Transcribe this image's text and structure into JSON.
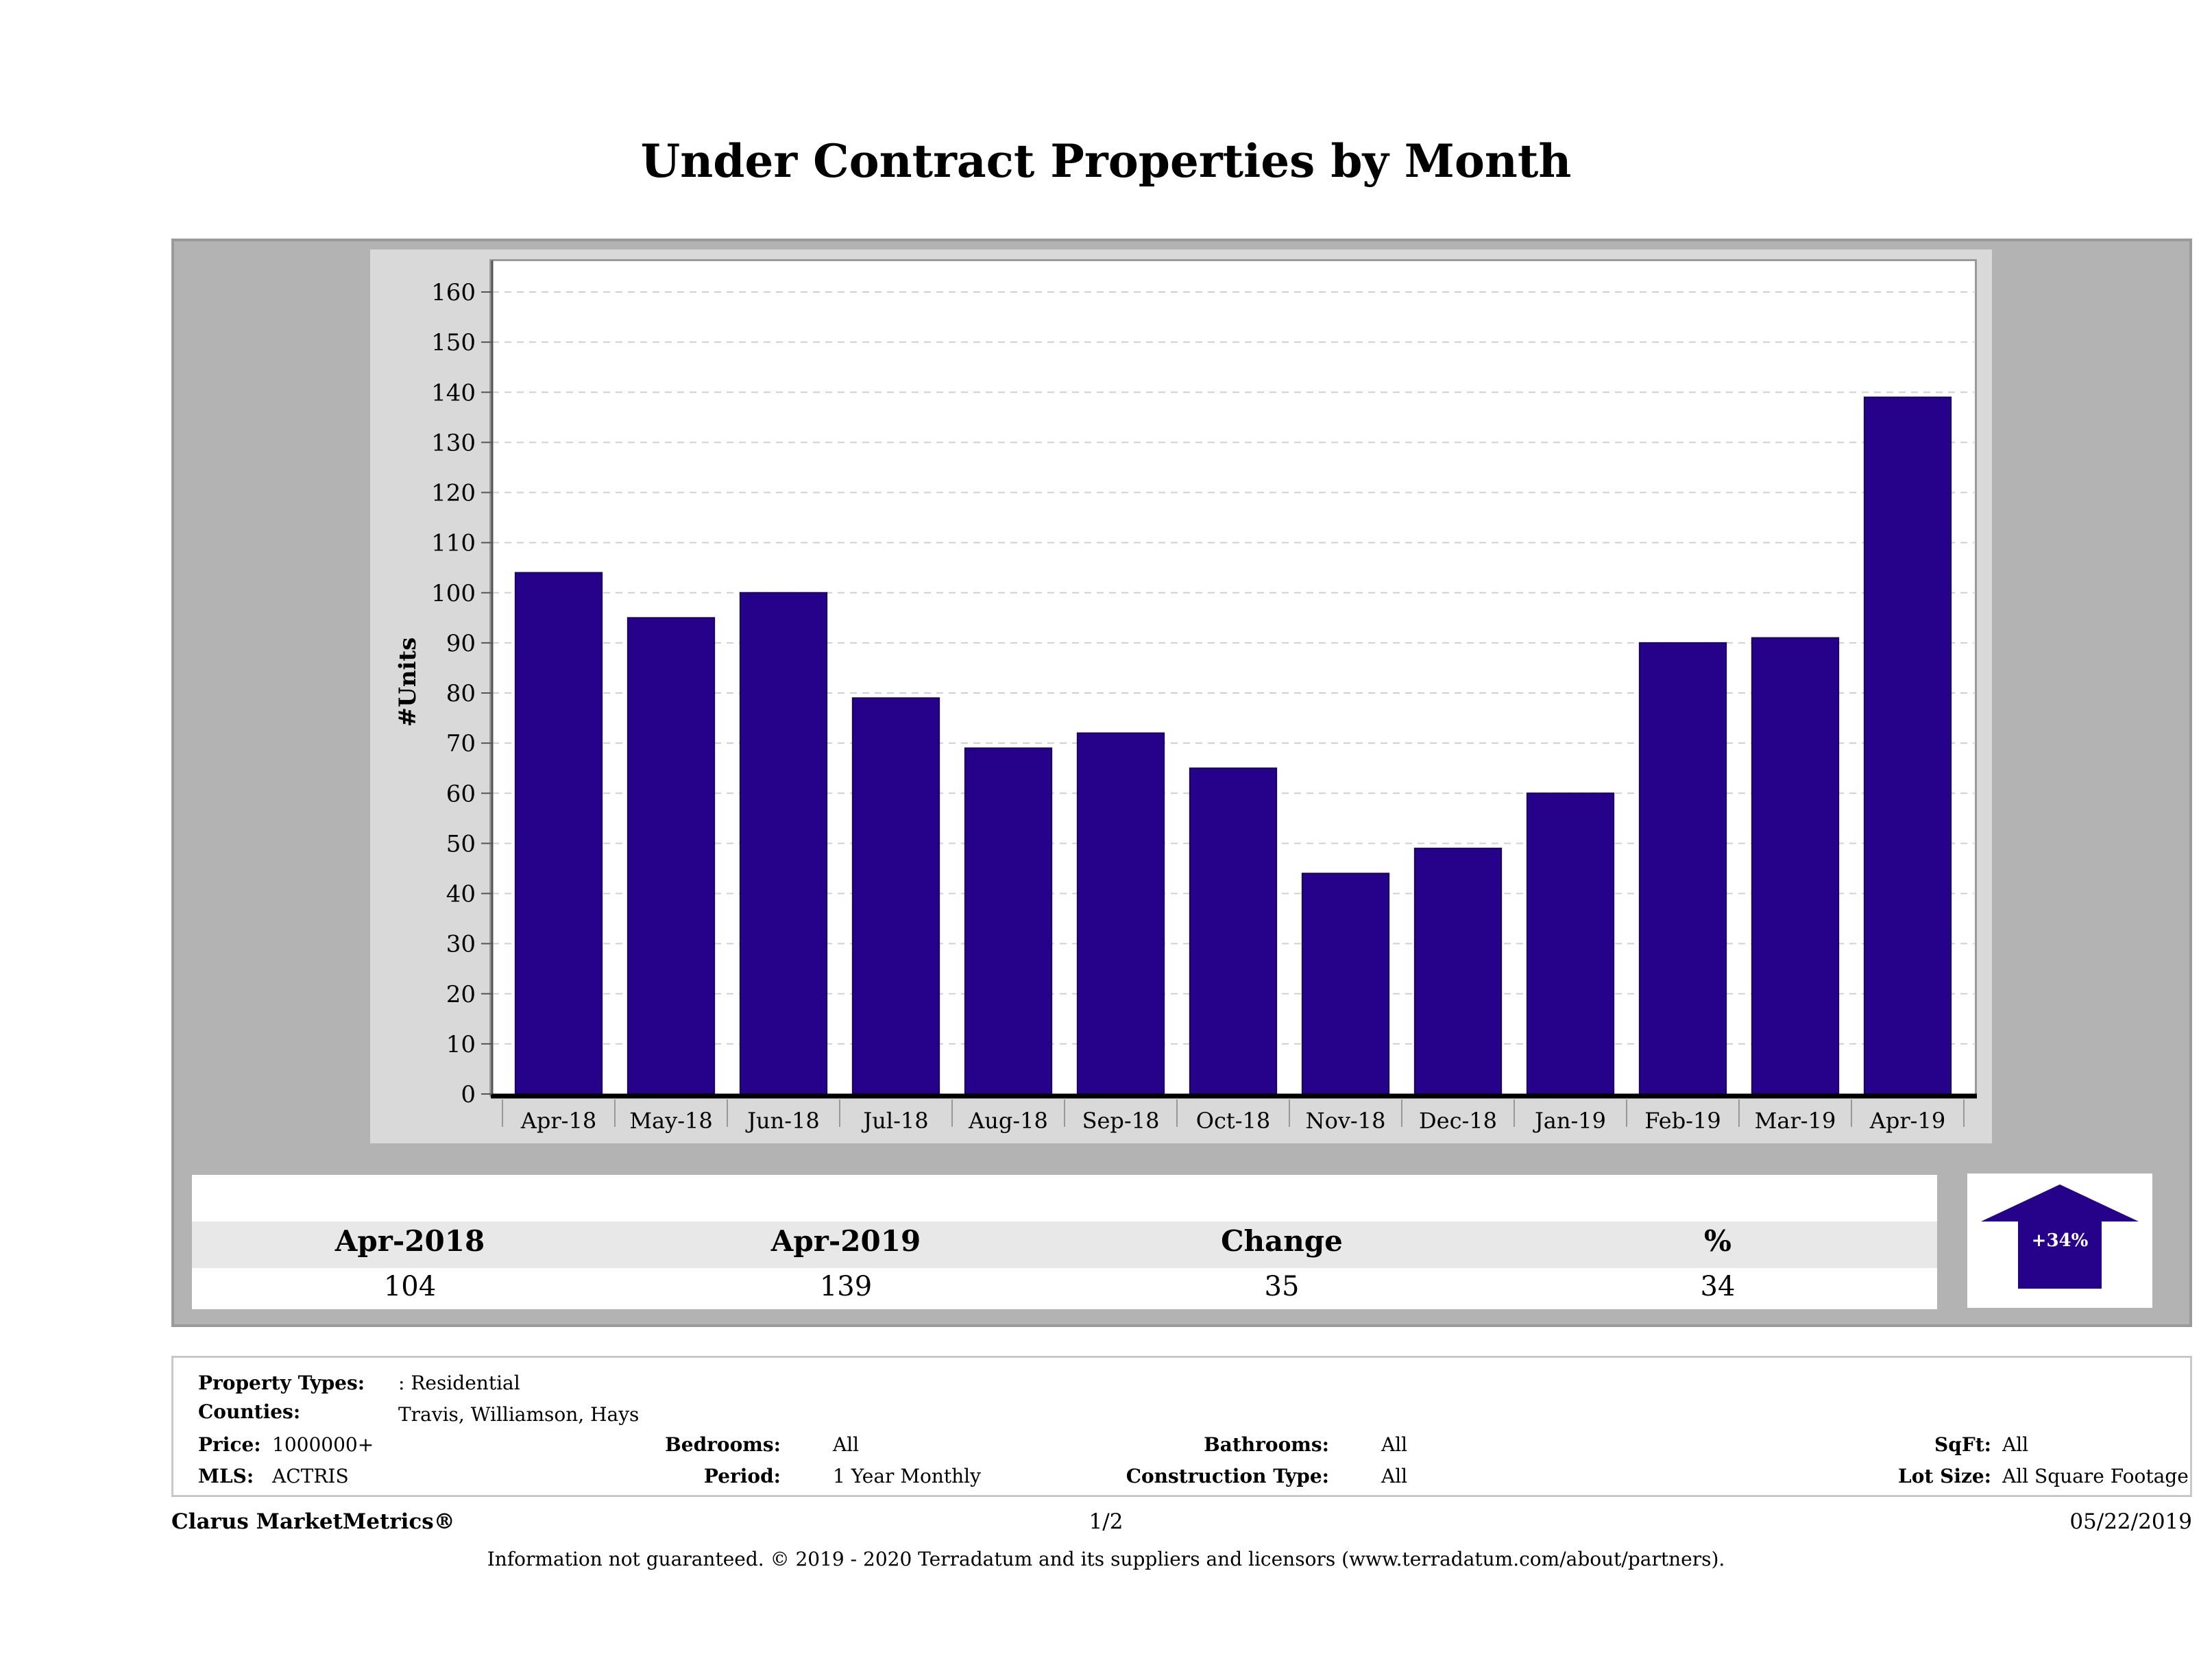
{
  "title": "Under Contract Properties by Month",
  "chart_data": {
    "type": "bar",
    "title": "Under Contract Properties by Month",
    "ylabel": "#Units",
    "xlabel": "",
    "categories": [
      "Apr-18",
      "May-18",
      "Jun-18",
      "Jul-18",
      "Aug-18",
      "Sep-18",
      "Oct-18",
      "Nov-18",
      "Dec-18",
      "Jan-19",
      "Feb-19",
      "Mar-19",
      "Apr-19"
    ],
    "values": [
      104,
      95,
      100,
      79,
      69,
      72,
      65,
      44,
      49,
      60,
      90,
      91,
      139
    ],
    "ylim": [
      0,
      160
    ],
    "yticks": [
      0,
      10,
      20,
      30,
      40,
      50,
      60,
      70,
      80,
      90,
      100,
      110,
      120,
      130,
      140,
      150,
      160
    ],
    "grid": true,
    "bar_color": "#26028a"
  },
  "summary": {
    "headers": [
      "Apr-2018",
      "Apr-2019",
      "Change",
      "%"
    ],
    "values": [
      "104",
      "139",
      "35",
      "34"
    ],
    "badge": "+34%",
    "badge_color": "#26028a"
  },
  "criteria": {
    "property_types_label": "Property Types:",
    "property_types_value": ": Residential",
    "counties_label": "Counties:",
    "counties_value": "Travis, Williamson, Hays",
    "price_label": "Price:",
    "price_value": "1000000+",
    "mls_label": "MLS:",
    "mls_value": "ACTRIS",
    "bedrooms_label": "Bedrooms:",
    "bedrooms_value": "All",
    "period_label": "Period:",
    "period_value": "1 Year Monthly",
    "bathrooms_label": "Bathrooms:",
    "bathrooms_value": "All",
    "construction_label": "Construction Type:",
    "construction_value": "All",
    "sqft_label": "SqFt:",
    "sqft_value": "All",
    "lot_label": "Lot Size:",
    "lot_value": "All Square Footage"
  },
  "footer": {
    "brand": "Clarus MarketMetrics®",
    "page": "1/2",
    "date": "05/22/2019",
    "disclaimer": "Information not guaranteed. © 2019 - 2020 Terradatum and its suppliers and licensors (www.terradatum.com/about/partners)."
  }
}
